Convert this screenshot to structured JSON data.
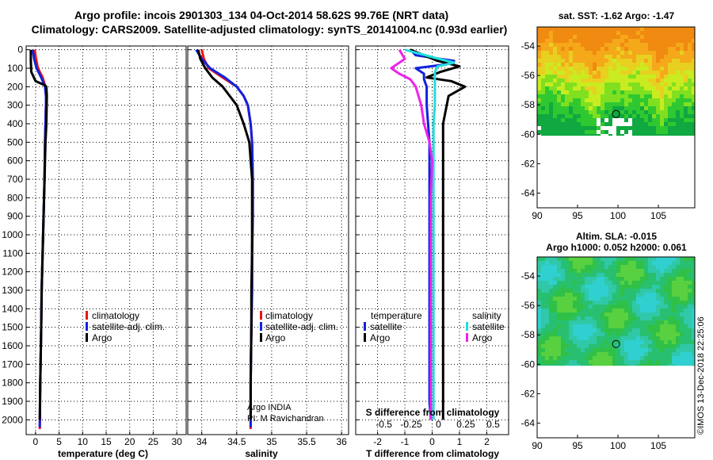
{
  "title_line1": "Argo profile: incois 2901303_134 04-Oct-2014 58.62S 99.76E (NRT data)",
  "title_line2": "Climatology: CARS2009. Satellite-adjusted climatology: synTS_20141004.nc (0.93d earlier)",
  "colors": {
    "climatology": "#ee1111",
    "satellite": "#1122dd",
    "argo": "#000000",
    "sal_satellite": "#22dddd",
    "sal_argo": "#ee22ee"
  },
  "chart_data": [
    {
      "type": "line",
      "name": "temperature-profile",
      "xlabel": "temperature (deg C)",
      "ylabel": "depth",
      "xlim": [
        -2,
        32
      ],
      "ylim": [
        2080,
        -20
      ],
      "x_ticks": [
        0,
        5,
        10,
        15,
        20,
        25,
        30
      ],
      "y_ticks": [
        0,
        100,
        200,
        300,
        400,
        500,
        600,
        700,
        800,
        900,
        1000,
        1100,
        1200,
        1300,
        1400,
        1500,
        1600,
        1700,
        1800,
        1900,
        2000
      ],
      "legend": [
        "climatology",
        "satellite-adj. clim.",
        "Argo"
      ],
      "series": [
        {
          "name": "climatology",
          "x": [
            -0.2,
            0.1,
            0.5,
            1.5,
            2.1,
            2.2,
            2.2,
            2.1,
            2.0,
            1.9,
            1.7,
            1.5,
            1.3,
            1.2,
            1.0,
            0.9
          ],
          "y": [
            0,
            50,
            100,
            150,
            200,
            250,
            300,
            400,
            500,
            700,
            900,
            1100,
            1300,
            1500,
            1800,
            2050
          ]
        },
        {
          "name": "satellite-adj. clim.",
          "x": [
            -0.6,
            -0.3,
            0.2,
            1.2,
            2.0,
            2.2,
            2.2,
            2.1,
            2.0,
            1.9,
            1.7,
            1.5,
            1.3,
            1.2,
            1.0,
            0.9
          ],
          "y": [
            0,
            50,
            100,
            150,
            200,
            250,
            300,
            400,
            500,
            700,
            900,
            1100,
            1300,
            1500,
            1800,
            2040
          ]
        },
        {
          "name": "Argo",
          "x": [
            -1.0,
            -1.0,
            -0.9,
            0.0,
            1.8,
            2.3,
            2.4,
            2.3,
            2.1,
            1.9,
            1.7,
            1.5,
            1.3,
            1.2,
            1.0,
            0.9
          ],
          "y": [
            0,
            60,
            120,
            170,
            190,
            200,
            250,
            400,
            500,
            700,
            900,
            1100,
            1300,
            1500,
            1800,
            2000
          ]
        }
      ]
    },
    {
      "type": "line",
      "name": "salinity-profile",
      "xlabel": "salinity",
      "xlim": [
        33.8,
        36.1
      ],
      "ylim": [
        2080,
        -20
      ],
      "x_ticks": [
        34,
        34.5,
        35,
        35.5,
        36
      ],
      "legend": [
        "climatology",
        "satellite-adj. clim.",
        "Argo"
      ],
      "annotation": [
        "Argo INDIA",
        "PI: M Ravichandran"
      ],
      "series": [
        {
          "name": "climatology",
          "x": [
            34.0,
            34.03,
            34.1,
            34.3,
            34.5,
            34.6,
            34.66,
            34.7,
            34.72,
            34.73,
            34.73,
            34.72,
            34.72,
            34.71,
            34.7,
            34.7
          ],
          "y": [
            0,
            50,
            100,
            150,
            200,
            250,
            300,
            400,
            500,
            700,
            900,
            1100,
            1300,
            1500,
            1800,
            2050
          ]
        },
        {
          "name": "satellite-adj. clim.",
          "x": [
            33.92,
            34.0,
            34.12,
            34.33,
            34.5,
            34.6,
            34.66,
            34.7,
            34.72,
            34.73,
            34.73,
            34.72,
            34.72,
            34.71,
            34.7,
            34.7
          ],
          "y": [
            0,
            50,
            100,
            150,
            200,
            250,
            300,
            400,
            500,
            700,
            900,
            1100,
            1300,
            1500,
            1800,
            2040
          ]
        },
        {
          "name": "Argo",
          "x": [
            33.95,
            33.98,
            34.05,
            34.15,
            34.3,
            34.4,
            34.5,
            34.6,
            34.68,
            34.72,
            34.72,
            34.72,
            34.71,
            34.71,
            34.7,
            34.7
          ],
          "y": [
            0,
            50,
            100,
            150,
            200,
            250,
            300,
            400,
            500,
            700,
            900,
            1100,
            1300,
            1500,
            1800,
            2000
          ]
        }
      ]
    },
    {
      "type": "line",
      "name": "difference-profile",
      "xlabel": "T difference from climatology",
      "xlabel2": "S difference from climatology",
      "xlim": [
        -2.8,
        2.8
      ],
      "ylim": [
        2080,
        -20
      ],
      "x_ticks": [
        -2,
        -1,
        0,
        1,
        2
      ],
      "x_ticks2": [
        "-0.5",
        "-0.25",
        "0",
        "0.25",
        "0.5"
      ],
      "legend_temperature_title": "temperature",
      "legend_temperature": [
        "satellite",
        "Argo"
      ],
      "legend_salinity_title": "salinity",
      "legend_salinity": [
        "satellite",
        "Argo"
      ],
      "series": [
        {
          "name": "T satellite",
          "x": [
            -0.8,
            -0.6,
            0.8,
            0.5,
            -0.6,
            -0.3,
            -0.3,
            -0.2,
            -0.2,
            -0.1,
            -0.1,
            -0.1,
            -0.1,
            -0.1,
            -0.1,
            -0.05
          ],
          "y": [
            0,
            30,
            60,
            80,
            100,
            130,
            160,
            200,
            300,
            500,
            800,
            1100,
            1400,
            1700,
            1900,
            2000
          ]
        },
        {
          "name": "T Argo",
          "x": [
            -0.8,
            -0.3,
            0.2,
            1.0,
            0.3,
            -0.2,
            0.7,
            1.2,
            0.6,
            0.4,
            0.4,
            0.4,
            0.4,
            0.4,
            0.4,
            0.4
          ],
          "y": [
            0,
            30,
            60,
            90,
            120,
            150,
            170,
            200,
            250,
            400,
            700,
            1000,
            1300,
            1600,
            1900,
            2000
          ]
        },
        {
          "name": "S satellite",
          "x": [
            -1.0,
            0.0,
            0.8,
            0.2,
            0.1,
            0.1,
            0.1,
            0.1,
            0.05,
            0.05,
            0.05,
            0.05,
            0.05,
            0.05,
            0.05,
            0.05
          ],
          "y": [
            0,
            40,
            70,
            90,
            120,
            150,
            200,
            300,
            400,
            600,
            800,
            1100,
            1400,
            1700,
            1900,
            2000
          ]
        },
        {
          "name": "S Argo",
          "x": [
            -1.2,
            -1.0,
            -1.5,
            -1.2,
            -0.8,
            -0.6,
            -0.4,
            -0.3,
            -0.1,
            0.0,
            -0.05,
            -0.05,
            -0.05,
            -0.05,
            -0.05,
            -0.05
          ],
          "y": [
            0,
            50,
            100,
            130,
            160,
            200,
            300,
            400,
            500,
            600,
            800,
            1100,
            1400,
            1700,
            1900,
            2000
          ]
        }
      ]
    },
    {
      "type": "heatmap",
      "name": "sst-map",
      "title": "sat. SST: -1.62 Argo: -1.47",
      "x_ticks": [
        90,
        95,
        100,
        105
      ],
      "y_ticks": [
        -54,
        -56,
        -58,
        -60,
        -62,
        -64
      ],
      "xlim": [
        90,
        109.5
      ],
      "ylim": [
        -52.7,
        -65
      ],
      "data_extent_lat": [
        -52.7,
        -60.1
      ],
      "argo_position": [
        99.76,
        -58.62
      ]
    },
    {
      "type": "heatmap",
      "name": "sla-map",
      "title": "Altim. SLA: -0.015",
      "subtitle": "Argo h1000: 0.052 h2000: 0.061",
      "x_ticks": [
        90,
        95,
        100,
        105
      ],
      "y_ticks": [
        -54,
        -56,
        -58,
        -60,
        -62,
        -64
      ],
      "xlim": [
        90,
        109.5
      ],
      "ylim": [
        -52.7,
        -65
      ],
      "data_extent_lat": [
        -52.7,
        -60.1
      ],
      "argo_position": [
        99.76,
        -58.62
      ]
    }
  ],
  "side_label": "©IMOS 13-Dec-2018 22:25:06"
}
